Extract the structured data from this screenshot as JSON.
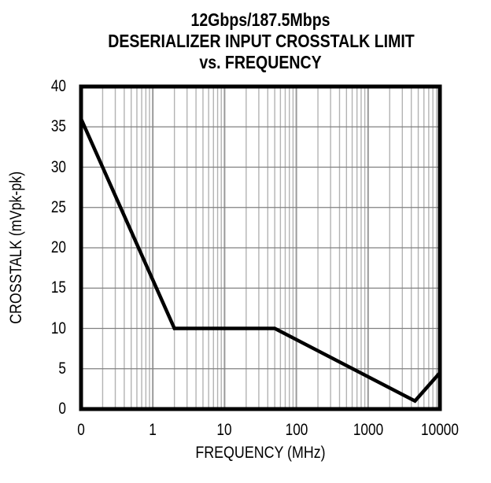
{
  "page": {
    "background_color": "#ffffff",
    "text_color": "#000000"
  },
  "chart_data": {
    "type": "line",
    "title_lines": [
      "12Gbps/187.5Mbps",
      "DESERIALIZER INPUT CROSSTALK LIMIT",
      "vs. FREQUENCY"
    ],
    "xlabel": "FREQUENCY (MHz)",
    "ylabel": "CROSSTALK (mVpk-pk)",
    "x_scale": "log",
    "x_min": 0.1,
    "x_max": 10000,
    "x_ticks": [
      {
        "label": "0",
        "value": 0.1
      },
      {
        "label": "1",
        "value": 1
      },
      {
        "label": "10",
        "value": 10
      },
      {
        "label": "100",
        "value": 100
      },
      {
        "label": "1000",
        "value": 1000
      },
      {
        "label": "10000",
        "value": 10000
      }
    ],
    "y_min": 0,
    "y_max": 40,
    "y_tick_step": 5,
    "y_ticks": [
      {
        "label": "40",
        "value": 40
      },
      {
        "label": "35",
        "value": 35
      },
      {
        "label": "30",
        "value": 30
      },
      {
        "label": "25",
        "value": 25
      },
      {
        "label": "20",
        "value": 20
      },
      {
        "label": "15",
        "value": 15
      },
      {
        "label": "10",
        "value": 10
      },
      {
        "label": "5",
        "value": 5
      },
      {
        "label": "0",
        "value": 0
      }
    ],
    "grid": {
      "show_minor_log_verticals": true,
      "minor_vertical_color": "#b3b3b3",
      "major_vertical_color": "#999999",
      "horizontal_color": "#808080",
      "border_color": "#000000"
    },
    "legend": "none",
    "series": [
      {
        "name": "deserializer-input-crosstalk-limit",
        "color": "#000000",
        "stroke_width": 4.5,
        "points": [
          [
            0.1,
            36
          ],
          [
            2,
            10
          ],
          [
            50,
            10
          ],
          [
            4500,
            1
          ],
          [
            10000,
            4.5
          ]
        ]
      }
    ]
  }
}
